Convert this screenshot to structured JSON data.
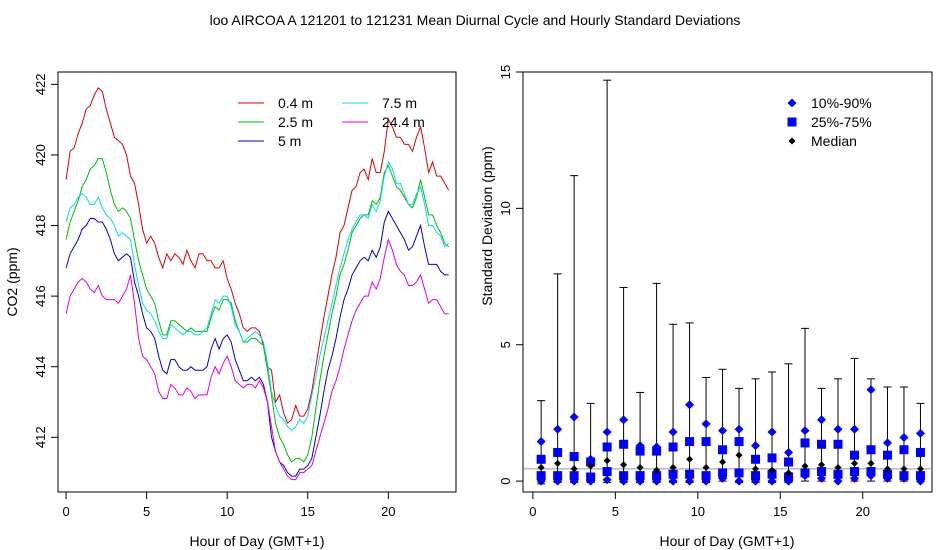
{
  "suptitle": "loo   AIRCOA A   121201 to 121231   Mean Diurnal Cycle and Hourly Standard Deviations",
  "chart_data": [
    {
      "type": "line",
      "title": "",
      "xlabel": "Hour of Day (GMT+1)",
      "ylabel": "CO2 (ppm)",
      "xlim": [
        -0.5,
        24.2
      ],
      "ylim": [
        410.45,
        422.35
      ],
      "xticks": [
        0,
        5,
        10,
        15,
        20
      ],
      "yticks": [
        412,
        414,
        416,
        418,
        420,
        422
      ],
      "legend_position": "top-right",
      "x": [
        0.0,
        0.25,
        0.5,
        0.75,
        1.0,
        1.25,
        1.5,
        1.75,
        2.0,
        2.25,
        2.5,
        2.75,
        3.0,
        3.25,
        3.5,
        3.75,
        4.0,
        4.25,
        4.5,
        4.75,
        5.0,
        5.25,
        5.5,
        5.75,
        6.0,
        6.25,
        6.5,
        6.75,
        7.0,
        7.25,
        7.5,
        7.75,
        8.0,
        8.25,
        8.5,
        8.75,
        9.0,
        9.25,
        9.5,
        9.75,
        10.0,
        10.25,
        10.5,
        10.75,
        11.0,
        11.25,
        11.5,
        11.75,
        12.0,
        12.25,
        12.5,
        12.75,
        13.0,
        13.25,
        13.5,
        13.75,
        14.0,
        14.25,
        14.5,
        14.75,
        15.0,
        15.25,
        15.5,
        15.75,
        16.0,
        16.25,
        16.5,
        16.75,
        17.0,
        17.25,
        17.5,
        17.75,
        18.0,
        18.25,
        18.5,
        18.75,
        19.0,
        19.25,
        19.5,
        19.75,
        20.0,
        20.25,
        20.5,
        20.75,
        21.0,
        21.25,
        21.5,
        21.75,
        22.0,
        22.25,
        22.5,
        22.75,
        23.0,
        23.25,
        23.5,
        23.75
      ],
      "series": [
        {
          "name": "0.4 m",
          "color": "#dd0000",
          "values": [
            419.3,
            420.1,
            420.2,
            420.6,
            420.9,
            421.3,
            421.4,
            421.7,
            421.9,
            421.8,
            421.3,
            420.9,
            420.5,
            420.4,
            420.3,
            420.0,
            419.4,
            419.2,
            418.6,
            417.9,
            417.5,
            417.7,
            417.5,
            417.1,
            416.8,
            417.2,
            417.0,
            417.2,
            417.1,
            416.9,
            417.3,
            417.0,
            416.8,
            417.2,
            417.2,
            417.0,
            417.0,
            416.8,
            416.8,
            417.0,
            416.5,
            416.2,
            415.8,
            415.5,
            415.1,
            415.0,
            415.1,
            415.1,
            415.0,
            414.6,
            414.0,
            413.9,
            413.0,
            413.2,
            412.7,
            412.4,
            412.5,
            412.9,
            412.6,
            412.6,
            412.8,
            413.3,
            414.0,
            414.7,
            415.4,
            416.0,
            416.6,
            417.1,
            417.8,
            418.0,
            418.5,
            419.0,
            419.1,
            419.5,
            419.6,
            419.3,
            419.9,
            419.5,
            419.5,
            420.1,
            421.0,
            420.8,
            420.5,
            420.5,
            420.3,
            420.3,
            420.1,
            420.5,
            420.8,
            420.2,
            419.5,
            419.8,
            419.4,
            419.4,
            419.2,
            419.0
          ]
        },
        {
          "name": "2.5 m",
          "color": "#00bb00",
          "values": [
            417.6,
            418.1,
            418.4,
            418.7,
            419.1,
            419.3,
            419.6,
            419.7,
            419.9,
            419.9,
            419.5,
            419.0,
            418.6,
            418.4,
            418.5,
            418.4,
            418.2,
            417.6,
            417.0,
            416.6,
            416.2,
            416.0,
            415.8,
            415.3,
            414.9,
            414.9,
            415.3,
            415.3,
            415.2,
            415.1,
            415.0,
            415.1,
            415.0,
            415.0,
            415.0,
            415.0,
            415.4,
            415.7,
            415.6,
            415.9,
            415.9,
            415.8,
            415.3,
            415.0,
            414.7,
            414.7,
            414.8,
            414.8,
            414.7,
            414.6,
            413.9,
            413.2,
            412.4,
            412.0,
            411.8,
            411.5,
            411.3,
            411.4,
            411.4,
            411.3,
            411.5,
            412.0,
            412.8,
            413.6,
            414.3,
            414.9,
            415.5,
            416.0,
            416.6,
            416.9,
            417.3,
            417.8,
            418.0,
            418.2,
            418.3,
            418.3,
            418.7,
            418.6,
            418.8,
            419.5,
            419.7,
            419.4,
            419.1,
            419.0,
            418.8,
            418.6,
            418.5,
            418.8,
            419.3,
            418.8,
            418.3,
            418.3,
            418.0,
            417.8,
            417.5,
            417.4
          ]
        },
        {
          "name": "5 m",
          "color": "#0000cc",
          "values": [
            416.8,
            417.2,
            417.4,
            417.6,
            417.9,
            418.0,
            418.2,
            418.2,
            418.1,
            418.1,
            417.9,
            417.6,
            417.2,
            417.0,
            417.1,
            417.2,
            417.1,
            416.4,
            416.0,
            415.5,
            415.1,
            415.0,
            414.8,
            414.3,
            413.9,
            413.8,
            414.2,
            414.2,
            414.0,
            413.9,
            413.9,
            414.0,
            413.9,
            413.9,
            413.9,
            414.0,
            414.5,
            414.8,
            414.5,
            414.8,
            414.9,
            414.7,
            414.2,
            413.9,
            413.6,
            413.6,
            413.7,
            413.6,
            413.7,
            413.5,
            413.0,
            412.0,
            411.6,
            411.3,
            411.2,
            411.0,
            410.9,
            410.9,
            411.1,
            411.1,
            411.2,
            411.4,
            412.0,
            412.6,
            413.3,
            413.9,
            414.3,
            414.8,
            415.4,
            415.9,
            416.2,
            416.6,
            416.8,
            417.0,
            417.1,
            417.0,
            417.3,
            417.1,
            417.4,
            418.1,
            418.4,
            418.2,
            418.0,
            417.8,
            417.6,
            417.3,
            417.4,
            417.7,
            418.0,
            417.4,
            416.9,
            416.9,
            416.9,
            416.7,
            416.6,
            416.6
          ]
        },
        {
          "name": "7.5 m",
          "color": "#00dddd",
          "values": [
            418.1,
            418.5,
            418.6,
            418.8,
            418.9,
            418.8,
            418.6,
            418.6,
            418.8,
            418.5,
            418.3,
            418.2,
            418.0,
            417.7,
            417.8,
            417.7,
            417.6,
            416.9,
            416.3,
            415.8,
            415.6,
            415.5,
            415.3,
            415.0,
            414.8,
            414.8,
            415.2,
            415.1,
            415.0,
            414.9,
            415.0,
            415.0,
            414.9,
            414.9,
            415.0,
            415.1,
            415.5,
            415.9,
            415.8,
            416.0,
            416.0,
            415.7,
            415.2,
            415.0,
            414.7,
            414.8,
            414.9,
            415.0,
            414.9,
            414.7,
            414.1,
            413.3,
            412.9,
            412.6,
            412.5,
            412.3,
            412.2,
            412.3,
            412.5,
            412.4,
            412.6,
            413.2,
            413.7,
            414.3,
            414.8,
            415.3,
            415.8,
            416.3,
            416.8,
            417.2,
            417.6,
            417.9,
            418.1,
            418.3,
            418.3,
            418.2,
            418.6,
            418.4,
            418.7,
            419.4,
            419.8,
            419.6,
            419.2,
            419.2,
            418.9,
            418.6,
            418.6,
            418.9,
            419.1,
            418.6,
            418.0,
            418.0,
            417.8,
            417.7,
            417.4,
            417.5
          ]
        },
        {
          "name": "24.4 m",
          "color": "#dd00dd",
          "values": [
            415.5,
            416.0,
            416.2,
            416.4,
            416.5,
            416.4,
            416.2,
            416.1,
            416.3,
            416.0,
            415.9,
            415.9,
            415.9,
            415.8,
            416.0,
            416.2,
            416.6,
            415.8,
            414.8,
            414.3,
            414.2,
            414.0,
            413.8,
            413.3,
            413.1,
            413.1,
            413.5,
            413.4,
            413.2,
            413.2,
            413.4,
            413.3,
            413.1,
            413.2,
            413.2,
            413.2,
            413.7,
            414.0,
            413.8,
            414.1,
            414.3,
            414.0,
            413.6,
            413.5,
            413.4,
            413.5,
            413.5,
            413.4,
            413.6,
            413.4,
            413.0,
            412.3,
            411.6,
            411.3,
            411.1,
            410.9,
            410.8,
            410.8,
            411.0,
            411.0,
            411.1,
            411.2,
            411.6,
            412.0,
            412.4,
            412.8,
            413.3,
            413.6,
            414.0,
            414.5,
            414.9,
            415.3,
            415.6,
            415.8,
            416.0,
            416.0,
            416.4,
            416.2,
            416.5,
            417.1,
            417.6,
            417.3,
            416.9,
            416.7,
            416.6,
            416.3,
            416.3,
            416.4,
            416.6,
            416.2,
            415.8,
            415.9,
            415.9,
            415.7,
            415.5,
            415.5
          ]
        }
      ]
    },
    {
      "type": "scatter",
      "title": "",
      "xlabel": "Hour of Day (GMT+1)",
      "ylabel": "Standard Deviation (ppm)",
      "xlim": [
        -0.6,
        24.2
      ],
      "ylim": [
        -0.4,
        15.0
      ],
      "xticks": [
        0,
        5,
        10,
        15,
        20
      ],
      "yticks": [
        0,
        5,
        10,
        15
      ],
      "legend_position": "top-right",
      "reference_line": 0.45,
      "hours": [
        0.5,
        1.5,
        2.5,
        3.5,
        4.5,
        5.5,
        6.5,
        7.5,
        8.5,
        9.5,
        10.5,
        11.5,
        12.5,
        13.5,
        14.5,
        15.5,
        16.5,
        17.5,
        18.5,
        19.5,
        20.5,
        21.5,
        22.5,
        23.5
      ],
      "whisker_max": [
        2.95,
        7.6,
        11.2,
        2.85,
        14.7,
        7.1,
        3.25,
        7.25,
        5.75,
        5.8,
        3.8,
        4.1,
        3.4,
        3.75,
        4.0,
        4.3,
        5.6,
        3.4,
        3.75,
        4.5,
        3.75,
        3.45,
        3.45,
        2.85
      ],
      "whisker_min": [
        -0.1,
        -0.05,
        -0.05,
        -0.05,
        -0.05,
        -0.05,
        -0.05,
        -0.05,
        -0.05,
        -0.05,
        -0.05,
        0.0,
        -0.05,
        -0.05,
        -0.05,
        -0.05,
        0.0,
        0.0,
        0.0,
        0.0,
        0.0,
        0.0,
        0.0,
        0.0
      ],
      "series": [
        {
          "name": "10%-90%",
          "marker": "diamond",
          "color": "#0000ff",
          "high": [
            1.45,
            1.9,
            2.35,
            0.8,
            1.8,
            2.25,
            1.3,
            1.25,
            1.8,
            2.8,
            2.1,
            1.85,
            1.9,
            1.3,
            1.8,
            1.05,
            1.85,
            2.25,
            1.9,
            1.9,
            3.35,
            1.4,
            1.6,
            1.75
          ],
          "low": [
            0.0,
            0.0,
            0.0,
            0.0,
            0.05,
            0.0,
            0.0,
            0.0,
            0.0,
            0.0,
            0.0,
            0.1,
            0.0,
            0.0,
            0.0,
            0.0,
            0.2,
            0.1,
            0.0,
            0.1,
            0.2,
            0.1,
            0.1,
            0.0
          ]
        },
        {
          "name": "25%-75%",
          "marker": "square",
          "color": "#0000ff",
          "high": [
            0.8,
            1.05,
            0.9,
            0.7,
            1.25,
            1.35,
            1.1,
            1.1,
            1.25,
            1.45,
            1.45,
            1.15,
            1.45,
            0.8,
            0.85,
            0.7,
            1.4,
            1.35,
            1.35,
            0.95,
            1.15,
            0.95,
            1.15,
            1.05
          ],
          "low": [
            0.2,
            0.2,
            0.2,
            0.15,
            0.35,
            0.2,
            0.2,
            0.2,
            0.25,
            0.25,
            0.2,
            0.3,
            0.3,
            0.2,
            0.25,
            0.15,
            0.3,
            0.35,
            0.25,
            0.35,
            0.35,
            0.25,
            0.2,
            0.2
          ]
        },
        {
          "name": "Median",
          "marker": "diamond",
          "color": "#000000",
          "values": [
            0.5,
            0.65,
            0.45,
            0.55,
            0.75,
            0.6,
            0.5,
            0.4,
            0.5,
            0.8,
            0.5,
            0.7,
            0.95,
            0.45,
            0.4,
            0.3,
            0.55,
            0.6,
            0.5,
            0.65,
            0.65,
            0.45,
            0.45,
            0.45
          ]
        }
      ]
    }
  ]
}
